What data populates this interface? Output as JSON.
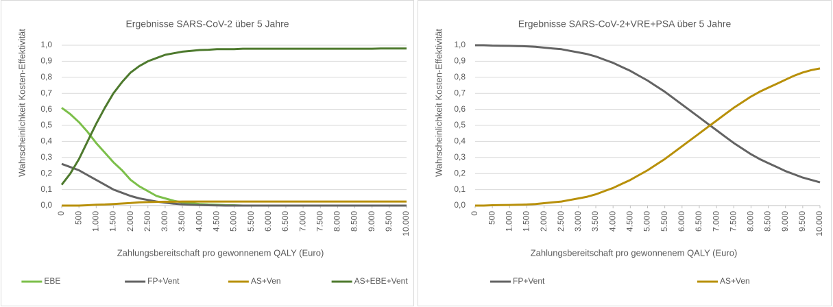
{
  "chart_data": [
    {
      "type": "line",
      "title": "Ergebnisse SARS-CoV-2 über 5 Jahre",
      "xlabel": "Zahlungsbereitschaft pro gewonnenem QALY (Euro)",
      "ylabel": "Wahrscheinlichkeit Kosten-Effektivität",
      "x": [
        0,
        250,
        500,
        750,
        1000,
        1250,
        1500,
        1750,
        2000,
        2250,
        2500,
        2750,
        3000,
        3250,
        3500,
        3750,
        4000,
        4250,
        4500,
        4750,
        5000,
        5250,
        5500,
        5750,
        6000,
        6250,
        6500,
        6750,
        7000,
        7250,
        7500,
        7750,
        8000,
        8250,
        8500,
        8750,
        9000,
        9250,
        9500,
        9750,
        10000
      ],
      "xlim": [
        0,
        10000
      ],
      "xticks": [
        0,
        500,
        {
          "value": 1000,
          "label": "1.000"
        },
        {
          "value": 1500,
          "label": "1.500"
        },
        {
          "value": 2000,
          "label": "2.000"
        },
        {
          "value": 2500,
          "label": "2.500"
        },
        {
          "value": 3000,
          "label": "3.000"
        },
        {
          "value": 3500,
          "label": "3.500"
        },
        {
          "value": 4000,
          "label": "4.000"
        },
        {
          "value": 4500,
          "label": "4.500"
        },
        {
          "value": 5000,
          "label": "5.000"
        },
        {
          "value": 5500,
          "label": "5.500"
        },
        {
          "value": 6000,
          "label": "6.000"
        },
        {
          "value": 6500,
          "label": "6.500"
        },
        {
          "value": 7000,
          "label": "7.000"
        },
        {
          "value": 7500,
          "label": "7.500"
        },
        {
          "value": 8000,
          "label": "8.000"
        },
        {
          "value": 8500,
          "label": "8.500"
        },
        {
          "value": 9000,
          "label": "9.000"
        },
        {
          "value": 9500,
          "label": "9.500"
        },
        {
          "value": 10000,
          "label": "10.000"
        }
      ],
      "ylim": [
        0,
        1
      ],
      "yticks": [
        {
          "value": 0,
          "label": "0,0"
        },
        {
          "value": 0.1,
          "label": "0,1"
        },
        {
          "value": 0.2,
          "label": "0,2"
        },
        {
          "value": 0.3,
          "label": "0,3"
        },
        {
          "value": 0.4,
          "label": "0,4"
        },
        {
          "value": 0.5,
          "label": "0,5"
        },
        {
          "value": 0.6,
          "label": "0,6"
        },
        {
          "value": 0.7,
          "label": "0,7"
        },
        {
          "value": 0.8,
          "label": "0,8"
        },
        {
          "value": 0.9,
          "label": "0,9"
        },
        {
          "value": 1,
          "label": "1,0"
        }
      ],
      "grid": true,
      "legend": "bottom",
      "series": [
        {
          "name": "EBE",
          "color": "#7cbf4a",
          "values": [
            0.61,
            0.57,
            0.52,
            0.46,
            0.39,
            0.33,
            0.27,
            0.22,
            0.16,
            0.12,
            0.09,
            0.06,
            0.045,
            0.03,
            0.02,
            0.015,
            0.01,
            0.007,
            0.005,
            0.003,
            0.002,
            0,
            0,
            0,
            0,
            0,
            0,
            0,
            0,
            0,
            0,
            0,
            0,
            0,
            0,
            0,
            0,
            0,
            0,
            0,
            0
          ]
        },
        {
          "name": "FP+Vent",
          "color": "#636363",
          "values": [
            0.26,
            0.24,
            0.22,
            0.19,
            0.16,
            0.13,
            0.1,
            0.08,
            0.06,
            0.045,
            0.035,
            0.025,
            0.018,
            0.012,
            0.008,
            0.005,
            0.003,
            0.002,
            0.001,
            0,
            0,
            0,
            0,
            0,
            0,
            0,
            0,
            0,
            0,
            0,
            0,
            0,
            0,
            0,
            0,
            0,
            0,
            0,
            0,
            0,
            0
          ]
        },
        {
          "name": "AS+Ven",
          "color": "#b8900a",
          "values": [
            0,
            0,
            0,
            0.002,
            0.005,
            0.007,
            0.01,
            0.013,
            0.016,
            0.02,
            0.022,
            0.023,
            0.024,
            0.024,
            0.025,
            0.025,
            0.025,
            0.025,
            0.025,
            0.025,
            0.025,
            0.025,
            0.025,
            0.025,
            0.025,
            0.025,
            0.025,
            0.025,
            0.025,
            0.025,
            0.025,
            0.025,
            0.025,
            0.025,
            0.025,
            0.025,
            0.025,
            0.025,
            0.025,
            0.025,
            0.025
          ]
        },
        {
          "name": "AS+EBE+Vent",
          "color": "#4e7a2e",
          "values": [
            0.13,
            0.2,
            0.29,
            0.4,
            0.51,
            0.61,
            0.7,
            0.77,
            0.83,
            0.87,
            0.9,
            0.92,
            0.94,
            0.95,
            0.96,
            0.965,
            0.97,
            0.972,
            0.975,
            0.975,
            0.975,
            0.978,
            0.978,
            0.978,
            0.978,
            0.978,
            0.978,
            0.978,
            0.978,
            0.978,
            0.978,
            0.978,
            0.978,
            0.978,
            0.978,
            0.978,
            0.978,
            0.98,
            0.98,
            0.98,
            0.98
          ]
        }
      ]
    },
    {
      "type": "line",
      "title": "Ergebnisse SARS-CoV-2+VRE+PSA über 5 Jahre",
      "xlabel": "Zahlungsbereitschaft pro gewonnenem QALY (Euro)",
      "ylabel": "Wahrscheinlichkeit Kosten-Effektivität",
      "x": [
        0,
        250,
        500,
        750,
        1000,
        1250,
        1500,
        1750,
        2000,
        2250,
        2500,
        2750,
        3000,
        3250,
        3500,
        3750,
        4000,
        4250,
        4500,
        4750,
        5000,
        5250,
        5500,
        5750,
        6000,
        6250,
        6500,
        6750,
        7000,
        7250,
        7500,
        7750,
        8000,
        8250,
        8500,
        8750,
        9000,
        9250,
        9500,
        9750,
        10000
      ],
      "xlim": [
        0,
        10000
      ],
      "xticks": [
        0,
        500,
        {
          "value": 1000,
          "label": "1.000"
        },
        {
          "value": 1500,
          "label": "1.500"
        },
        {
          "value": 2000,
          "label": "2.000"
        },
        {
          "value": 2500,
          "label": "2.500"
        },
        {
          "value": 3000,
          "label": "3.000"
        },
        {
          "value": 3500,
          "label": "3.500"
        },
        {
          "value": 4000,
          "label": "4.000"
        },
        {
          "value": 4500,
          "label": "4.500"
        },
        {
          "value": 5000,
          "label": "5.000"
        },
        {
          "value": 5500,
          "label": "5.500"
        },
        {
          "value": 6000,
          "label": "6.000"
        },
        {
          "value": 6500,
          "label": "6.500"
        },
        {
          "value": 7000,
          "label": "7.000"
        },
        {
          "value": 7500,
          "label": "7.500"
        },
        {
          "value": 8000,
          "label": "8.000"
        },
        {
          "value": 8500,
          "label": "8.500"
        },
        {
          "value": 9000,
          "label": "9.000"
        },
        {
          "value": 9500,
          "label": "9.500"
        },
        {
          "value": 10000,
          "label": "10.000"
        }
      ],
      "ylim": [
        0,
        1
      ],
      "yticks": [
        {
          "value": 0,
          "label": "0,0"
        },
        {
          "value": 0.1,
          "label": "0,1"
        },
        {
          "value": 0.2,
          "label": "0,2"
        },
        {
          "value": 0.3,
          "label": "0,3"
        },
        {
          "value": 0.4,
          "label": "0,4"
        },
        {
          "value": 0.5,
          "label": "0,5"
        },
        {
          "value": 0.6,
          "label": "0,6"
        },
        {
          "value": 0.7,
          "label": "0,7"
        },
        {
          "value": 0.8,
          "label": "0,8"
        },
        {
          "value": 0.9,
          "label": "0,9"
        },
        {
          "value": 1,
          "label": "1,0"
        }
      ],
      "grid": true,
      "legend": "bottom",
      "series": [
        {
          "name": "FP+Vent",
          "color": "#636363",
          "values": [
            1,
            1,
            0.998,
            0.997,
            0.996,
            0.995,
            0.993,
            0.99,
            0.985,
            0.98,
            0.975,
            0.965,
            0.955,
            0.945,
            0.93,
            0.91,
            0.89,
            0.865,
            0.84,
            0.81,
            0.78,
            0.745,
            0.71,
            0.67,
            0.63,
            0.59,
            0.55,
            0.51,
            0.47,
            0.43,
            0.39,
            0.355,
            0.32,
            0.29,
            0.265,
            0.24,
            0.215,
            0.195,
            0.175,
            0.16,
            0.145
          ]
        },
        {
          "name": "AS+Ven",
          "color": "#b8900a",
          "values": [
            0,
            0,
            0.002,
            0.003,
            0.004,
            0.005,
            0.007,
            0.01,
            0.015,
            0.02,
            0.025,
            0.035,
            0.045,
            0.055,
            0.07,
            0.09,
            0.11,
            0.135,
            0.16,
            0.19,
            0.22,
            0.255,
            0.29,
            0.33,
            0.37,
            0.41,
            0.45,
            0.49,
            0.53,
            0.57,
            0.61,
            0.645,
            0.68,
            0.71,
            0.735,
            0.76,
            0.785,
            0.81,
            0.83,
            0.845,
            0.855
          ]
        }
      ]
    }
  ]
}
